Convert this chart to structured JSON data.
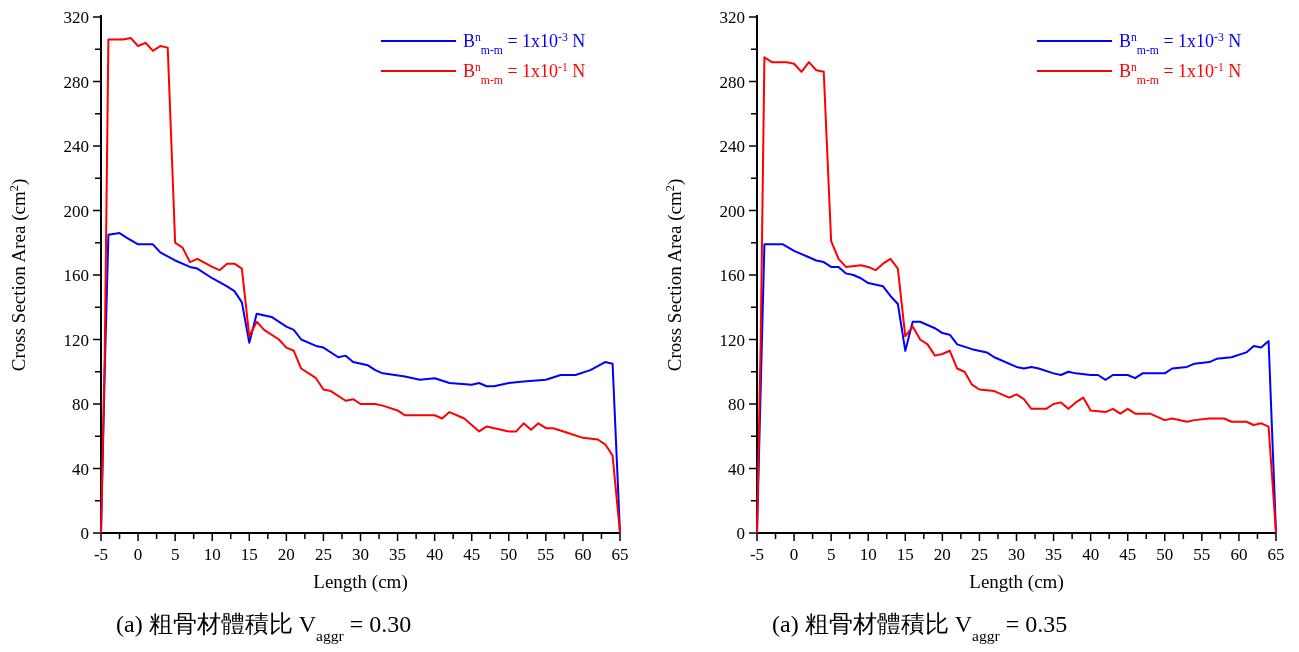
{
  "chart_data": [
    {
      "type": "line",
      "xlabel": "Length (cm)",
      "ylabel": "Cross Section Area (cm$^{2}$)",
      "xlim": [
        -5,
        65
      ],
      "ylim": [
        0,
        320
      ],
      "xticks": [
        -5,
        0,
        5,
        10,
        15,
        20,
        25,
        30,
        35,
        40,
        45,
        50,
        55,
        60,
        65
      ],
      "yticks": [
        0,
        40,
        80,
        120,
        160,
        200,
        240,
        280,
        320
      ],
      "legend": "top right",
      "grid": false,
      "line_style": "solid",
      "annotations": [
        "(a)  粗骨材體積比 V$_{aggr}$ = 0.30"
      ],
      "series": [
        {
          "name": "B$^{n}$$_{m-m}$ = 1x10$^{-3}$ N",
          "color": "#0000ff",
          "x": [
            -5,
            -4.5,
            -4,
            -2.5,
            -1.5,
            0,
            2,
            3,
            5,
            7,
            8,
            10,
            12,
            13,
            14,
            15,
            16,
            18,
            20,
            21,
            22,
            24,
            25,
            27,
            28,
            29,
            31,
            32,
            33,
            36,
            38,
            40,
            42,
            45,
            46,
            47,
            48,
            50,
            52,
            55,
            57,
            59,
            61,
            63,
            64,
            65
          ],
          "values": [
            0,
            100,
            185,
            186,
            183,
            179,
            179,
            174,
            169,
            165,
            164,
            158,
            153,
            150,
            143,
            118,
            136,
            134,
            128,
            126,
            120,
            116,
            115,
            109,
            110,
            106,
            104,
            101,
            99,
            97,
            95,
            96,
            93,
            92,
            93,
            91,
            91,
            93,
            94,
            95,
            98,
            98,
            101,
            106,
            105,
            0
          ]
        },
        {
          "name": "B$^{n}$$_{m-m}$ = 1x10$^{-1}$ N",
          "color": "#ff0000",
          "x": [
            -5,
            -4.5,
            -4,
            -2,
            -1,
            0,
            1,
            2,
            3,
            4,
            5,
            6,
            7,
            8,
            10,
            11,
            12,
            13,
            14,
            15,
            16,
            17,
            19,
            20,
            21,
            22,
            24,
            25,
            26,
            28,
            29,
            30,
            32,
            33,
            35,
            36,
            39,
            40,
            41,
            42,
            44,
            45,
            46,
            47,
            50,
            51,
            52,
            53,
            54,
            55,
            56,
            58,
            60,
            62,
            63,
            64,
            65
          ],
          "values": [
            0,
            110,
            306,
            306,
            307,
            302,
            304,
            299,
            302,
            301,
            180,
            177,
            168,
            170,
            165,
            163,
            167,
            167,
            164,
            122,
            131,
            126,
            120,
            115,
            113,
            102,
            96,
            89,
            88,
            82,
            83,
            80,
            80,
            79,
            76,
            73,
            73,
            73,
            71,
            75,
            71,
            67,
            63,
            66,
            63,
            63,
            68,
            64,
            68,
            65,
            65,
            62,
            59,
            58,
            55,
            48,
            0
          ]
        }
      ]
    },
    {
      "type": "line",
      "xlabel": "Length (cm)",
      "ylabel": "Cross Section Area (cm$^{2}$)",
      "xlim": [
        -5,
        65
      ],
      "ylim": [
        0,
        320
      ],
      "xticks": [
        -5,
        0,
        5,
        10,
        15,
        20,
        25,
        30,
        35,
        40,
        45,
        50,
        55,
        60,
        65
      ],
      "yticks": [
        0,
        40,
        80,
        120,
        160,
        200,
        240,
        280,
        320
      ],
      "legend": "top right",
      "grid": false,
      "line_style": "solid",
      "annotations": [
        "(a)  粗骨材體積比 V$_{aggr}$ = 0.35"
      ],
      "series": [
        {
          "name": "B$^{n}$$_{m-m}$ = 1x10$^{-3}$ N",
          "color": "#0000ff",
          "x": [
            -5,
            -4.5,
            -4,
            -1.5,
            0,
            2,
            3,
            4,
            5,
            6,
            7,
            8,
            9,
            10,
            12,
            13,
            14,
            15,
            16,
            17,
            19,
            20,
            21,
            22,
            24,
            26,
            27,
            30,
            31,
            32,
            33,
            35,
            36,
            37,
            38,
            40,
            41,
            42,
            43,
            45,
            46,
            47,
            50,
            51,
            53,
            54,
            56,
            57,
            59,
            61,
            62,
            63,
            64,
            65
          ],
          "values": [
            0,
            90,
            179,
            179,
            175,
            171,
            169,
            168,
            165,
            165,
            161,
            160,
            158,
            155,
            153,
            147,
            142,
            113,
            131,
            131,
            127,
            124,
            123,
            117,
            114,
            112,
            109,
            103,
            102,
            103,
            102,
            99,
            98,
            100,
            99,
            98,
            98,
            95,
            98,
            98,
            96,
            99,
            99,
            102,
            103,
            105,
            106,
            108,
            109,
            112,
            116,
            115,
            119,
            0
          ]
        },
        {
          "name": "B$^{n}$$_{m-m}$ = 1x10$^{-1}$ N",
          "color": "#ff0000",
          "x": [
            -5,
            -4.5,
            -4,
            -3,
            -1,
            0,
            1,
            2,
            3,
            4,
            5,
            6,
            7,
            9,
            10,
            11,
            12,
            13,
            14,
            15,
            16,
            17,
            18,
            19,
            20,
            21,
            22,
            23,
            24,
            25,
            27,
            28,
            29,
            30,
            31,
            32,
            34,
            35,
            36,
            37,
            38,
            39,
            40,
            42,
            43,
            44,
            45,
            46,
            48,
            50,
            51,
            53,
            54,
            56,
            58,
            59,
            61,
            62,
            63,
            64,
            65
          ],
          "values": [
            0,
            120,
            295,
            292,
            292,
            291,
            286,
            292,
            287,
            286,
            181,
            170,
            165,
            166,
            165,
            163,
            167,
            170,
            164,
            122,
            128,
            120,
            117,
            110,
            111,
            113,
            102,
            100,
            92,
            89,
            88,
            86,
            84,
            86,
            83,
            77,
            77,
            80,
            81,
            77,
            81,
            84,
            76,
            75,
            77,
            74,
            77,
            74,
            74,
            70,
            71,
            69,
            70,
            71,
            71,
            69,
            69,
            67,
            68,
            66,
            0
          ]
        }
      ]
    }
  ]
}
